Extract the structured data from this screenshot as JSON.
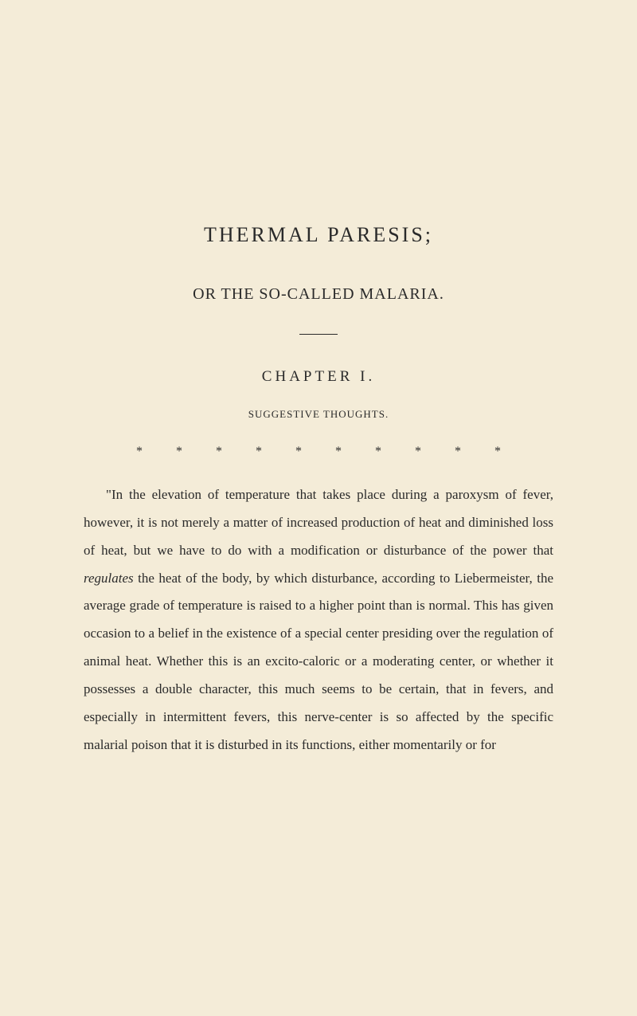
{
  "page": {
    "background_color": "#f4ecd8",
    "text_color": "#2a2a2a",
    "title_main": "THERMAL PARESIS;",
    "title_sub": "OR THE SO-CALLED MALARIA.",
    "chapter_heading": "CHAPTER I.",
    "section_heading": "SUGGESTIVE THOUGHTS.",
    "asterisk_row": "* * * * * * * * * *",
    "body_prefix": "\"In the elevation of temperature that takes place during a paroxysm of fever, however, it is not merely a matter of increased production of heat and diminished loss of heat, but we have to do with a modification or disturbance of the power that ",
    "body_italic": "regulates",
    "body_suffix": " the heat of the body, by which disturbance, according to Liebermeister, the average grade of temperature is raised to a higher point than is normal. This has given occasion to a belief in the existence of a special center presiding over the regulation of animal heat. Whether this is an excito-caloric or a moderating center, or whether it possesses a double character, this much seems to be certain, that in fevers, and especially in intermittent fevers, this nerve-center is so affected by the specific malarial poison that it is disturbed in its functions, either momentarily or for",
    "typography": {
      "title_main_fontsize": 26,
      "title_sub_fontsize": 20,
      "chapter_fontsize": 19,
      "section_fontsize": 13,
      "body_fontsize": 17,
      "body_lineheight": 2.05
    }
  }
}
